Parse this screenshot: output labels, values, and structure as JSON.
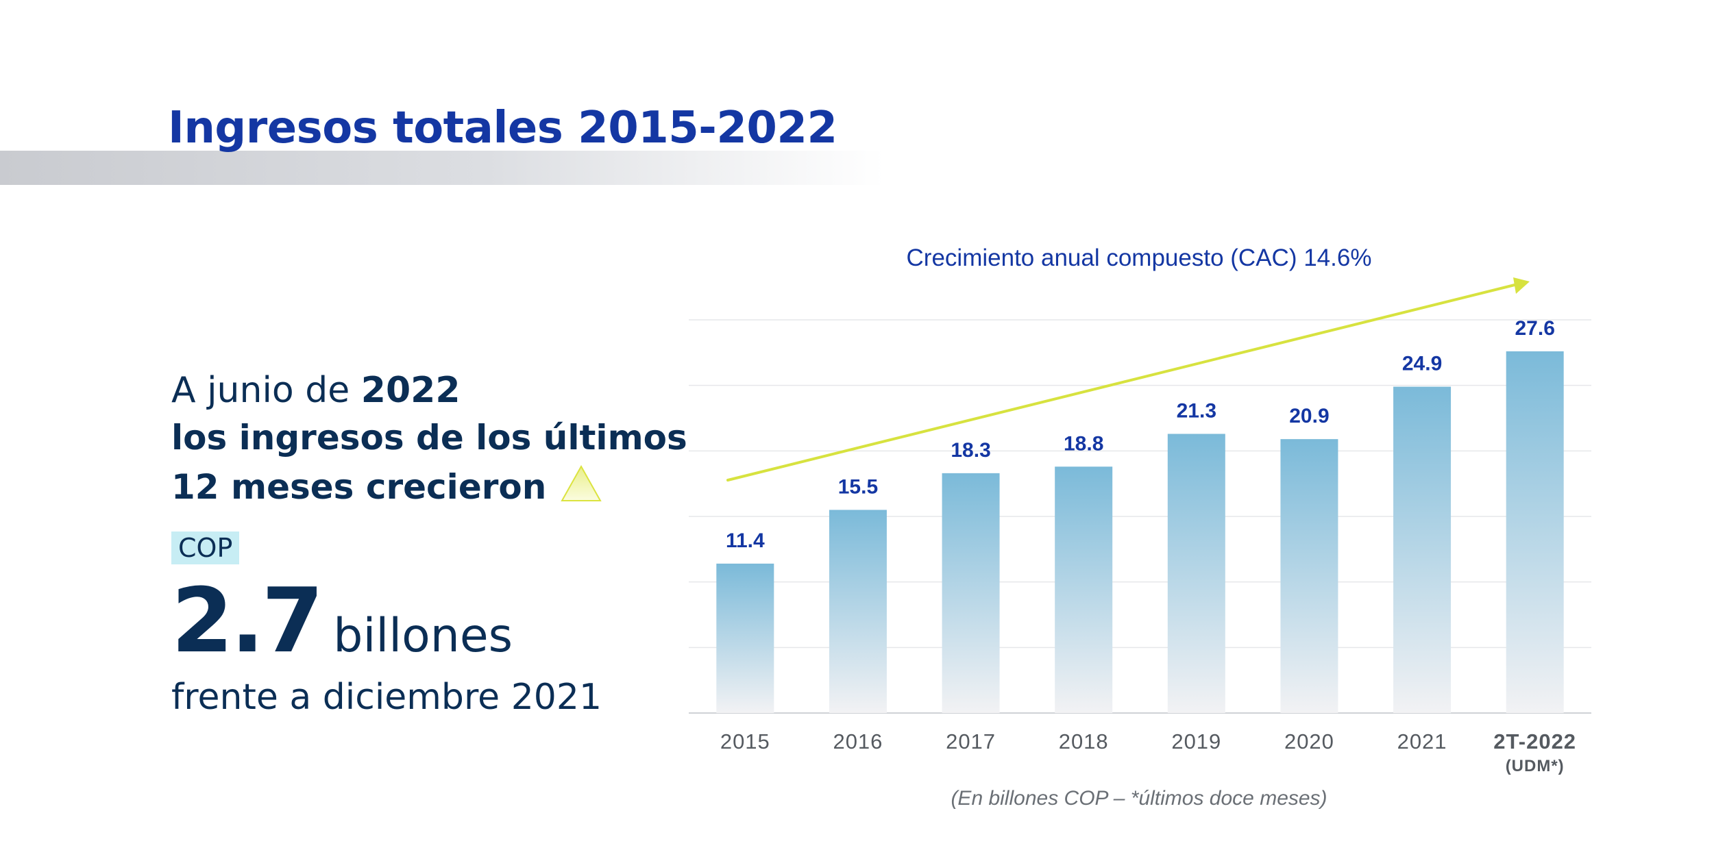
{
  "title": "Ingresos totales 2015-2022",
  "summary": {
    "line1_prefix": "A junio de ",
    "line1_bold": "2022",
    "line2": "los ingresos de los últimos",
    "line3": "12 meses crecieron",
    "currency_badge": "COP",
    "big_value": "2.7",
    "big_unit": "billones",
    "last_line": "frente a diciembre 2021"
  },
  "colors": {
    "title": "#1437a3",
    "text_dark": "#0b2e55",
    "value_labels": "#1437a3",
    "bar_top": "#7bbad9",
    "bar_bottom": "#f2f2f4",
    "trend_arrow": "#d7e23f",
    "badge_bg": "#c7edf4"
  },
  "icons": {
    "growth": "up-triangle-icon"
  },
  "chart_data": {
    "type": "bar",
    "categories": [
      "2015",
      "2016",
      "2017",
      "2018",
      "2019",
      "2020",
      "2021",
      "2T-2022"
    ],
    "category_sublabels": [
      "",
      "",
      "",
      "",
      "",
      "",
      "",
      "(UDM*)"
    ],
    "values": [
      11.4,
      15.5,
      18.3,
      18.8,
      21.3,
      20.9,
      24.9,
      27.6
    ],
    "ylim": [
      0,
      30
    ],
    "grid": true,
    "trend_label": "Crecimiento anual compuesto (CAC) 14.6%",
    "footnote": "(En billones COP – *últimos doce meses)"
  }
}
